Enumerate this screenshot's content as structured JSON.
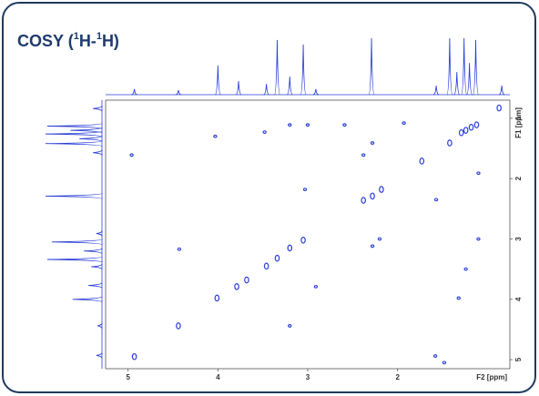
{
  "chart_data": {
    "type": "cosy",
    "title": [
      "COSY (",
      "1",
      "H-",
      "1",
      "H)"
    ],
    "x_label": "F2 [ppm]",
    "y_label": "F1 [ppm]",
    "xlim": [
      5.25,
      0.75
    ],
    "ylim": [
      0.7,
      5.15
    ],
    "xticks": [
      5,
      4,
      3,
      2
    ],
    "yticks": [
      1,
      2,
      3,
      4,
      5
    ],
    "color": "#2b3fd6",
    "peaks": {
      "x": [
        0.87,
        1.12,
        1.18,
        1.24,
        1.29,
        1.42,
        1.73,
        2.28,
        2.38,
        3.05,
        3.2,
        3.34,
        3.46,
        3.68,
        3.79,
        4.01,
        4.44,
        4.93,
        4.03,
        3.2,
        3.0,
        3.48,
        2.59,
        1.93,
        2.28,
        2.38,
        4.96,
        1.1,
        3.03,
        2.18,
        1.57,
        4.43,
        2.28,
        2.2,
        1.1,
        1.24,
        2.91,
        1.32,
        3.2,
        1.58,
        1.48
      ],
      "y": [
        0.83,
        1.11,
        1.15,
        1.2,
        1.24,
        1.41,
        1.71,
        2.29,
        2.36,
        3.02,
        3.15,
        3.32,
        3.45,
        3.68,
        3.79,
        3.98,
        4.44,
        4.95,
        1.3,
        1.11,
        1.11,
        1.23,
        1.11,
        1.08,
        1.41,
        1.61,
        1.61,
        1.91,
        2.18,
        2.18,
        2.35,
        3.17,
        3.12,
        3.0,
        3.0,
        3.5,
        3.79,
        3.98,
        4.44,
        4.94,
        5.05
      ]
    },
    "projection": {
      "ppm": [
        4.93,
        4.44,
        4.0,
        3.77,
        3.46,
        3.34,
        3.2,
        3.05,
        2.91,
        2.29,
        1.57,
        1.42,
        1.34,
        1.26,
        1.2,
        1.13,
        0.84
      ],
      "values": [
        10,
        8,
        52,
        24,
        19,
        97,
        32,
        89,
        10,
        100,
        16,
        100,
        40,
        100,
        56,
        97,
        16
      ]
    }
  }
}
